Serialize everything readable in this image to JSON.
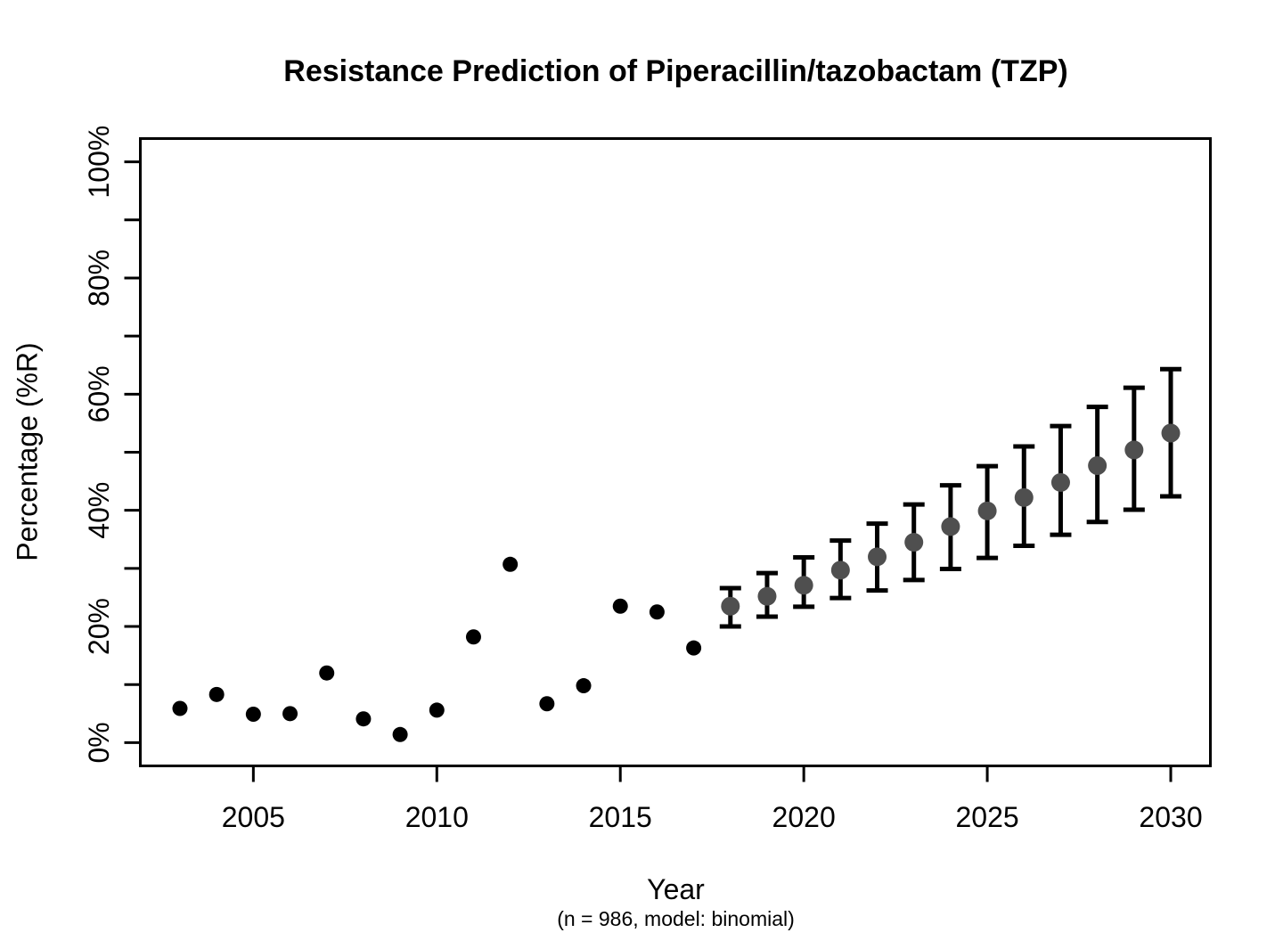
{
  "chart_data": {
    "type": "scatter",
    "title": "Resistance Prediction of Piperacillin/tazobactam (TZP)",
    "xlabel": "Year",
    "xlabel_note": "(n = 986, model: binomial)",
    "ylabel": "Percentage (%R)",
    "grid": false,
    "legend": null,
    "xlim": [
      2001.92,
      2031.08
    ],
    "ylim_pct": [
      -4,
      104
    ],
    "x_ticks": [
      2005,
      2010,
      2015,
      2020,
      2025,
      2030
    ],
    "y_major_ticks": [
      {
        "value": 0,
        "label": "0%"
      },
      {
        "value": 20,
        "label": "20%"
      },
      {
        "value": 40,
        "label": "40%"
      },
      {
        "value": 60,
        "label": "60%"
      },
      {
        "value": 80,
        "label": "80%"
      },
      {
        "value": 100,
        "label": "100%"
      }
    ],
    "y_minor_ticks": [
      10,
      30,
      50,
      70,
      90
    ],
    "colors": {
      "observed_point": "#000000",
      "predicted_point": "#4f4f4f",
      "error_bar": "#000000",
      "axis": "#000000"
    },
    "series": [
      {
        "name": "observed",
        "marker": "filled-circle",
        "points": [
          {
            "x": 2003,
            "y": 5.9
          },
          {
            "x": 2004,
            "y": 8.3
          },
          {
            "x": 2005,
            "y": 4.9
          },
          {
            "x": 2006,
            "y": 5.0
          },
          {
            "x": 2007,
            "y": 12.0
          },
          {
            "x": 2008,
            "y": 4.1
          },
          {
            "x": 2009,
            "y": 1.4
          },
          {
            "x": 2010,
            "y": 5.6
          },
          {
            "x": 2011,
            "y": 18.2
          },
          {
            "x": 2012,
            "y": 30.7
          },
          {
            "x": 2013,
            "y": 6.7
          },
          {
            "x": 2014,
            "y": 9.8
          },
          {
            "x": 2015,
            "y": 23.5
          },
          {
            "x": 2016,
            "y": 22.5
          },
          {
            "x": 2017,
            "y": 16.3
          }
        ]
      },
      {
        "name": "predicted",
        "marker": "filled-circle-with-error-bars",
        "points": [
          {
            "x": 2018,
            "y": 23.5,
            "y_lower": 20.0,
            "y_upper": 26.6
          },
          {
            "x": 2019,
            "y": 25.2,
            "y_lower": 21.7,
            "y_upper": 29.2
          },
          {
            "x": 2020,
            "y": 27.1,
            "y_lower": 23.4,
            "y_upper": 31.9
          },
          {
            "x": 2021,
            "y": 29.7,
            "y_lower": 24.9,
            "y_upper": 34.8
          },
          {
            "x": 2022,
            "y": 32.0,
            "y_lower": 26.2,
            "y_upper": 37.7
          },
          {
            "x": 2023,
            "y": 34.5,
            "y_lower": 28.0,
            "y_upper": 41.0
          },
          {
            "x": 2024,
            "y": 37.2,
            "y_lower": 29.9,
            "y_upper": 44.3
          },
          {
            "x": 2025,
            "y": 39.9,
            "y_lower": 31.8,
            "y_upper": 47.6
          },
          {
            "x": 2026,
            "y": 42.2,
            "y_lower": 33.9,
            "y_upper": 51.0
          },
          {
            "x": 2027,
            "y": 44.8,
            "y_lower": 35.8,
            "y_upper": 54.5
          },
          {
            "x": 2028,
            "y": 47.7,
            "y_lower": 38.0,
            "y_upper": 57.8
          },
          {
            "x": 2029,
            "y": 50.4,
            "y_lower": 40.1,
            "y_upper": 61.1
          },
          {
            "x": 2030,
            "y": 53.3,
            "y_lower": 42.4,
            "y_upper": 64.3
          }
        ]
      }
    ]
  }
}
